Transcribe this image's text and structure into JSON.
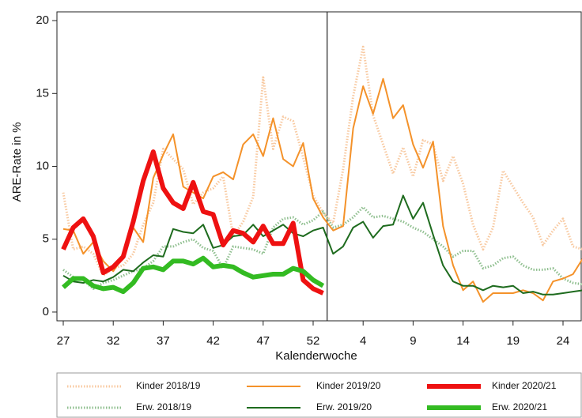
{
  "chart_data": {
    "type": "line",
    "x_label": "Kalenderwoche",
    "y_label": "ARE-Rate in %",
    "categories": [
      "27",
      null,
      null,
      null,
      null,
      "32",
      null,
      null,
      null,
      null,
      "37",
      null,
      null,
      null,
      null,
      "42",
      null,
      null,
      null,
      null,
      "47",
      null,
      null,
      null,
      null,
      "52",
      null,
      null,
      null,
      null,
      "4",
      null,
      null,
      null,
      null,
      "9",
      null,
      null,
      null,
      null,
      "14",
      null,
      null,
      null,
      null,
      "19",
      null,
      null,
      null,
      null,
      "24",
      null,
      null
    ],
    "ylim": [
      -0.6,
      20.6
    ],
    "yticks": [
      0,
      5,
      10,
      15,
      20
    ],
    "vline": 26.4,
    "series": [
      {
        "name": "Kinder 2018/19",
        "color": "#f8c9a0",
        "line_style": "dotted",
        "values": [
          8.2,
          4.3,
          4.5,
          4.0,
          2.5,
          3.0,
          3.2,
          4.0,
          6.0,
          7.5,
          11.2,
          10.5,
          9.8,
          7.4,
          8.2,
          8.5,
          9.3,
          5.2,
          6.2,
          7.9,
          16.1,
          11.2,
          13.4,
          13.1,
          10.6,
          8.0,
          6.8,
          6.1,
          9.8,
          14.8,
          18.2,
          13.5,
          11.5,
          9.5,
          11.3,
          9.3,
          11.8,
          11.5,
          9.0,
          10.7,
          8.8,
          6.0,
          4.3,
          5.8,
          9.7,
          8.6,
          7.5,
          6.5,
          4.6,
          5.6,
          6.4,
          4.5,
          4.3
        ]
      },
      {
        "name": "Erw. 2018/19",
        "color": "#8fbf8f",
        "line_style": "dotted",
        "values": [
          2.9,
          2.4,
          2.2,
          1.6,
          2.0,
          2.2,
          2.5,
          2.8,
          3.0,
          3.5,
          4.5,
          4.5,
          4.8,
          5.0,
          4.4,
          4.2,
          3.0,
          4.5,
          4.4,
          4.3,
          4.0,
          5.8,
          6.4,
          6.5,
          6.0,
          6.3,
          6.9,
          5.8,
          6.0,
          6.5,
          7.2,
          6.5,
          6.6,
          6.4,
          6.2,
          5.8,
          5.5,
          5.0,
          4.5,
          3.8,
          4.2,
          4.2,
          3.0,
          3.2,
          3.7,
          3.8,
          3.2,
          2.9,
          2.9,
          3.0,
          2.3,
          2.0,
          1.9
        ]
      },
      {
        "name": "Kinder 2019/20",
        "color": "#f4922a",
        "line_style": "solid",
        "values": [
          5.7,
          5.6,
          4.0,
          4.8,
          3.5,
          2.8,
          3.8,
          5.8,
          4.8,
          9.2,
          10.8,
          12.2,
          8.6,
          8.2,
          7.8,
          9.3,
          9.6,
          9.1,
          11.5,
          12.2,
          10.7,
          13.3,
          10.5,
          10.0,
          11.6,
          7.8,
          6.5,
          5.6,
          5.9,
          12.6,
          15.5,
          13.6,
          16.0,
          13.3,
          14.2,
          11.5,
          9.9,
          11.7,
          5.9,
          3.2,
          1.5,
          2.1,
          0.7,
          1.3,
          1.3,
          1.3,
          1.5,
          1.3,
          0.8,
          2.1,
          2.3,
          2.6,
          3.7
        ]
      },
      {
        "name": "Erw. 2019/20",
        "color": "#1e6b1e",
        "line_style": "solid",
        "values": [
          2.5,
          2.1,
          2.0,
          2.2,
          2.1,
          2.4,
          2.9,
          2.8,
          3.4,
          3.9,
          3.8,
          5.7,
          5.5,
          5.4,
          6.0,
          4.4,
          4.6,
          5.2,
          5.3,
          6.0,
          5.2,
          5.6,
          6.0,
          5.4,
          5.2,
          5.6,
          5.8,
          4.0,
          4.5,
          5.8,
          6.2,
          5.1,
          5.9,
          6.0,
          8.0,
          6.4,
          7.5,
          5.3,
          3.2,
          2.1,
          1.8,
          1.8,
          1.5,
          1.8,
          1.7,
          1.8,
          1.3,
          1.4,
          1.2,
          1.2,
          1.3,
          1.4,
          1.5
        ]
      },
      {
        "name": "Kinder 2020/21",
        "color": "#ee1111",
        "line_style": "thick",
        "values": [
          4.3,
          5.8,
          6.4,
          5.2,
          2.7,
          3.1,
          3.8,
          6.2,
          9.0,
          11.0,
          8.5,
          7.5,
          7.1,
          8.9,
          6.9,
          6.7,
          4.6,
          5.6,
          5.4,
          4.8,
          5.9,
          4.7,
          4.7,
          6.1,
          2.2,
          1.6,
          1.3,
          null,
          null,
          null,
          null,
          null,
          null,
          null,
          null,
          null,
          null,
          null,
          null,
          null,
          null,
          null,
          null,
          null,
          null,
          null,
          null,
          null,
          null,
          null,
          null,
          null,
          null
        ]
      },
      {
        "name": "Erw. 2020/21",
        "color": "#33bb22",
        "line_style": "thick",
        "values": [
          1.7,
          2.3,
          2.3,
          1.8,
          1.6,
          1.7,
          1.4,
          2.0,
          3.0,
          3.1,
          2.9,
          3.5,
          3.5,
          3.3,
          3.7,
          3.1,
          3.2,
          3.1,
          2.7,
          2.4,
          2.5,
          2.6,
          2.6,
          3.0,
          2.8,
          2.2,
          1.8,
          null,
          null,
          null,
          null,
          null,
          null,
          null,
          null,
          null,
          null,
          null,
          null,
          null,
          null,
          null,
          null,
          null,
          null,
          null,
          null,
          null,
          null,
          null,
          null,
          null,
          null
        ]
      }
    ]
  }
}
